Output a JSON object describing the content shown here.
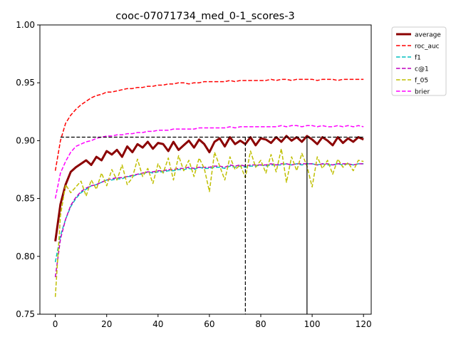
{
  "chart_data": {
    "type": "line",
    "title": "cooc-07071734_med_0-1_scores-3",
    "xlabel": "",
    "ylabel": "",
    "xlim": [
      -6,
      123
    ],
    "ylim": [
      0.75,
      1.0
    ],
    "x_ticks": [
      0,
      20,
      40,
      60,
      80,
      100,
      120
    ],
    "y_ticks": [
      0.75,
      0.8,
      0.85,
      0.9,
      0.95,
      1.0
    ],
    "x_tick_labels": [
      "0",
      "20",
      "40",
      "60",
      "80",
      "100",
      "120"
    ],
    "y_tick_labels": [
      "0.75",
      "0.80",
      "0.85",
      "0.90",
      "0.95",
      "1.00"
    ],
    "grid": false,
    "legend_position": "outside-top-right",
    "x": [
      0,
      2,
      4,
      6,
      8,
      10,
      12,
      14,
      16,
      18,
      20,
      22,
      24,
      26,
      28,
      30,
      32,
      34,
      36,
      38,
      40,
      42,
      44,
      46,
      48,
      50,
      52,
      54,
      56,
      58,
      60,
      62,
      64,
      66,
      68,
      70,
      72,
      74,
      76,
      78,
      80,
      82,
      84,
      86,
      88,
      90,
      92,
      94,
      96,
      98,
      100,
      102,
      104,
      106,
      108,
      110,
      112,
      114,
      116,
      118,
      120
    ],
    "series": [
      {
        "name": "average",
        "color": "#8b0000",
        "style": "solid",
        "width": 3,
        "values": [
          0.813,
          0.845,
          0.862,
          0.873,
          0.877,
          0.88,
          0.883,
          0.879,
          0.886,
          0.883,
          0.891,
          0.888,
          0.892,
          0.886,
          0.895,
          0.89,
          0.897,
          0.894,
          0.899,
          0.893,
          0.898,
          0.897,
          0.891,
          0.899,
          0.892,
          0.896,
          0.9,
          0.894,
          0.901,
          0.897,
          0.89,
          0.899,
          0.902,
          0.895,
          0.903,
          0.897,
          0.9,
          0.897,
          0.903,
          0.896,
          0.902,
          0.901,
          0.898,
          0.903,
          0.899,
          0.904,
          0.9,
          0.903,
          0.899,
          0.904,
          0.901,
          0.897,
          0.903,
          0.9,
          0.896,
          0.903,
          0.898,
          0.902,
          0.899,
          0.903,
          0.901
        ]
      },
      {
        "name": "roc_auc",
        "color": "#ff0000",
        "style": "dashed",
        "width": 1.5,
        "values": [
          0.874,
          0.9,
          0.915,
          0.922,
          0.927,
          0.931,
          0.934,
          0.937,
          0.939,
          0.94,
          0.942,
          0.942,
          0.943,
          0.944,
          0.945,
          0.945,
          0.946,
          0.946,
          0.947,
          0.947,
          0.948,
          0.948,
          0.949,
          0.949,
          0.95,
          0.95,
          0.949,
          0.95,
          0.95,
          0.951,
          0.951,
          0.951,
          0.951,
          0.951,
          0.952,
          0.951,
          0.952,
          0.952,
          0.952,
          0.952,
          0.952,
          0.952,
          0.953,
          0.952,
          0.953,
          0.953,
          0.952,
          0.953,
          0.953,
          0.953,
          0.953,
          0.952,
          0.953,
          0.953,
          0.953,
          0.952,
          0.953,
          0.953,
          0.953,
          0.953,
          0.953
        ]
      },
      {
        "name": "f1",
        "color": "#00bfbf",
        "style": "dashed",
        "width": 1.5,
        "values": [
          0.795,
          0.818,
          0.832,
          0.843,
          0.85,
          0.855,
          0.858,
          0.861,
          0.862,
          0.864,
          0.866,
          0.866,
          0.867,
          0.867,
          0.869,
          0.869,
          0.871,
          0.871,
          0.873,
          0.872,
          0.873,
          0.873,
          0.874,
          0.874,
          0.875,
          0.875,
          0.876,
          0.875,
          0.877,
          0.876,
          0.876,
          0.877,
          0.877,
          0.876,
          0.878,
          0.877,
          0.878,
          0.877,
          0.878,
          0.878,
          0.879,
          0.878,
          0.879,
          0.879,
          0.879,
          0.88,
          0.879,
          0.88,
          0.879,
          0.88,
          0.88,
          0.879,
          0.88,
          0.879,
          0.879,
          0.88,
          0.879,
          0.88,
          0.879,
          0.88,
          0.88
        ]
      },
      {
        "name": "c@1",
        "color": "#bf00bf",
        "style": "dashed",
        "width": 1.5,
        "values": [
          0.782,
          0.815,
          0.832,
          0.844,
          0.851,
          0.856,
          0.859,
          0.861,
          0.862,
          0.864,
          0.866,
          0.867,
          0.868,
          0.868,
          0.869,
          0.87,
          0.871,
          0.872,
          0.873,
          0.873,
          0.874,
          0.874,
          0.875,
          0.875,
          0.876,
          0.876,
          0.877,
          0.876,
          0.877,
          0.877,
          0.877,
          0.878,
          0.878,
          0.877,
          0.879,
          0.878,
          0.879,
          0.878,
          0.879,
          0.879,
          0.879,
          0.879,
          0.88,
          0.879,
          0.88,
          0.88,
          0.879,
          0.88,
          0.88,
          0.88,
          0.88,
          0.879,
          0.88,
          0.88,
          0.879,
          0.88,
          0.88,
          0.88,
          0.879,
          0.88,
          0.88
        ]
      },
      {
        "name": "f_05",
        "color": "#bfbf00",
        "style": "dashed",
        "width": 1.5,
        "values": [
          0.765,
          0.835,
          0.862,
          0.855,
          0.86,
          0.865,
          0.852,
          0.866,
          0.858,
          0.872,
          0.861,
          0.875,
          0.866,
          0.879,
          0.862,
          0.868,
          0.884,
          0.869,
          0.876,
          0.863,
          0.88,
          0.872,
          0.885,
          0.866,
          0.887,
          0.874,
          0.883,
          0.869,
          0.885,
          0.876,
          0.856,
          0.89,
          0.878,
          0.866,
          0.886,
          0.875,
          0.879,
          0.868,
          0.891,
          0.877,
          0.883,
          0.872,
          0.888,
          0.873,
          0.893,
          0.864,
          0.886,
          0.874,
          0.889,
          0.878,
          0.86,
          0.886,
          0.876,
          0.883,
          0.871,
          0.884,
          0.877,
          0.881,
          0.874,
          0.883,
          0.882
        ]
      },
      {
        "name": "brier",
        "color": "#ff00ff",
        "style": "dashed",
        "width": 1.5,
        "values": [
          0.85,
          0.872,
          0.882,
          0.89,
          0.895,
          0.897,
          0.899,
          0.9,
          0.902,
          0.903,
          0.904,
          0.904,
          0.905,
          0.905,
          0.906,
          0.906,
          0.907,
          0.907,
          0.908,
          0.908,
          0.909,
          0.909,
          0.909,
          0.91,
          0.91,
          0.91,
          0.91,
          0.91,
          0.911,
          0.911,
          0.911,
          0.911,
          0.911,
          0.911,
          0.912,
          0.911,
          0.912,
          0.912,
          0.912,
          0.912,
          0.912,
          0.912,
          0.912,
          0.912,
          0.913,
          0.912,
          0.913,
          0.913,
          0.912,
          0.913,
          0.913,
          0.912,
          0.913,
          0.912,
          0.912,
          0.913,
          0.912,
          0.913,
          0.912,
          0.913,
          0.912
        ]
      }
    ],
    "reference_lines": {
      "horizontal_y": 0.903,
      "horizontal_x_range": [
        2,
        120
      ],
      "vertical_dashed_x": 74,
      "vertical_solid_x": 98
    }
  }
}
